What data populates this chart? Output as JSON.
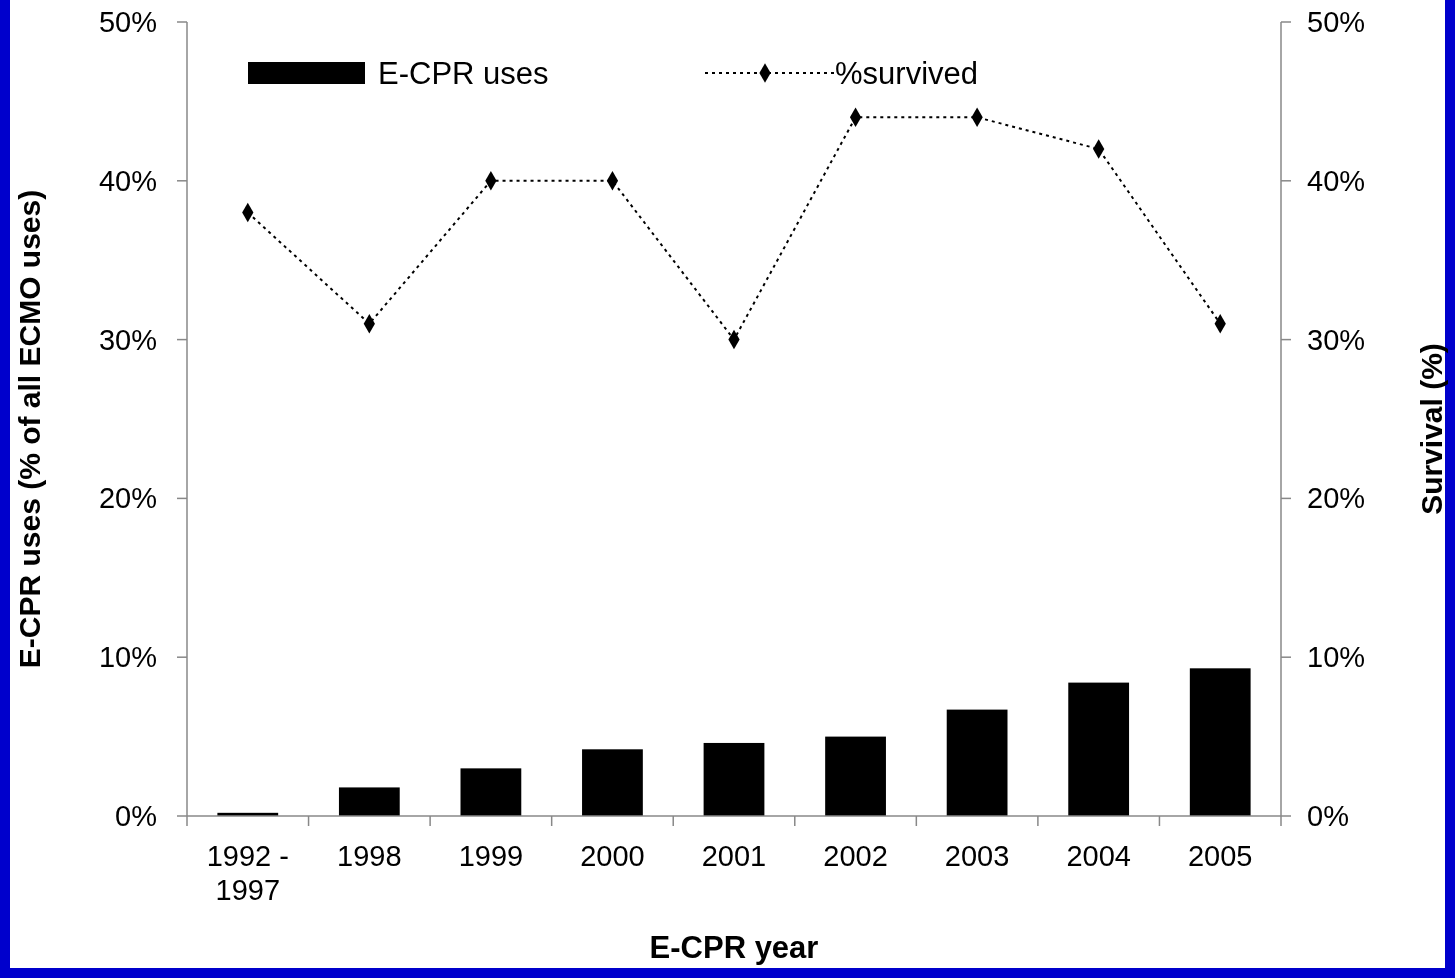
{
  "chart_data": {
    "type": "bar",
    "xlabel": "E-CPR year",
    "ylabel": "E-CPR uses  (% of all ECMO uses)",
    "y2label": "Survival (%)",
    "categories": [
      "1992 - 1997",
      "1998",
      "1999",
      "2000",
      "2001",
      "2002",
      "2003",
      "2004",
      "2005"
    ],
    "series": [
      {
        "name": "E-CPR uses",
        "color": "#000000",
        "values": [
          0.2,
          1.8,
          3.0,
          4.2,
          4.6,
          5.0,
          6.7,
          8.4,
          9.3
        ]
      },
      {
        "name": "%survived",
        "type": "line",
        "axis": "y2",
        "color": "#000000",
        "marker": "diamond",
        "line_style": "dotted",
        "values": [
          38,
          31,
          40,
          40,
          30,
          44,
          44,
          42,
          31
        ]
      }
    ],
    "ylim": [
      0,
      50
    ],
    "yticks": [
      {
        "value": 0,
        "label": "0%"
      },
      {
        "value": 10,
        "label": "10%"
      },
      {
        "value": 20,
        "label": "20%"
      },
      {
        "value": 30,
        "label": "30%"
      },
      {
        "value": 40,
        "label": "40%"
      },
      {
        "value": 50,
        "label": "50%"
      }
    ],
    "y2lim": [
      0,
      50
    ],
    "y2ticks": [
      {
        "value": 0,
        "label": "0%"
      },
      {
        "value": 10,
        "label": "10%"
      },
      {
        "value": 20,
        "label": "20%"
      },
      {
        "value": 30,
        "label": "30%"
      },
      {
        "value": 40,
        "label": "40%"
      },
      {
        "value": 50,
        "label": "50%"
      }
    ],
    "grid": false,
    "legend": "top"
  }
}
